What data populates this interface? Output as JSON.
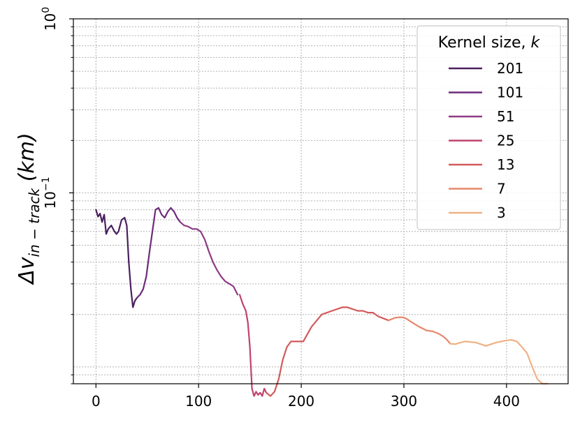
{
  "chart_data": {
    "type": "line",
    "title": "",
    "xlabel": "",
    "ylabel_parts": [
      "Δv",
      "in − track",
      " (km)"
    ],
    "xlim": [
      -22,
      460
    ],
    "ylim": [
      0.008,
      1.0
    ],
    "yscale": "log",
    "grid": true,
    "x_tick_labels": [
      "0",
      "100",
      "200",
      "300",
      "400"
    ],
    "y_tick_labels": [
      {
        "base": "10",
        "exp": "0"
      },
      {
        "base": "10",
        "exp": "−1"
      }
    ],
    "legend": {
      "title": "Kernel size, ",
      "title_var": "k",
      "placement": "upper right"
    },
    "series": [
      {
        "name": "201",
        "color": "#4a1f5e",
        "x": [
          0,
          2,
          4,
          6,
          8,
          10,
          12,
          15,
          18,
          20,
          22,
          25,
          28,
          30,
          32,
          34,
          36,
          38,
          40
        ],
        "y": [
          0.08,
          0.073,
          0.076,
          0.068,
          0.075,
          0.058,
          0.062,
          0.065,
          0.06,
          0.058,
          0.06,
          0.07,
          0.072,
          0.065,
          0.04,
          0.028,
          0.022,
          0.024,
          0.025
        ]
      },
      {
        "name": "101",
        "color": "#6d2b7a",
        "x": [
          40,
          43,
          46,
          49,
          52,
          55,
          58,
          61,
          64,
          67,
          70,
          73,
          76,
          79,
          82
        ],
        "y": [
          0.025,
          0.026,
          0.028,
          0.033,
          0.045,
          0.06,
          0.08,
          0.082,
          0.075,
          0.072,
          0.078,
          0.082,
          0.078,
          0.072,
          0.068
        ]
      },
      {
        "name": "51",
        "color": "#8f3a86",
        "x": [
          82,
          86,
          90,
          94,
          98,
          102,
          106,
          110,
          114,
          118,
          122,
          126,
          130,
          134,
          138
        ],
        "y": [
          0.068,
          0.065,
          0.064,
          0.062,
          0.062,
          0.06,
          0.054,
          0.046,
          0.04,
          0.036,
          0.033,
          0.031,
          0.03,
          0.029,
          0.026
        ]
      },
      {
        "name": "25",
        "color": "#c0436f",
        "x": [
          140,
          143,
          146,
          148,
          150,
          152,
          154,
          156,
          158,
          160,
          162,
          164,
          166
        ],
        "y": [
          0.026,
          0.023,
          0.021,
          0.018,
          0.013,
          0.0075,
          0.0068,
          0.0072,
          0.0069,
          0.0071,
          0.0068,
          0.0075,
          0.0071
        ]
      },
      {
        "name": "13",
        "color": "#d25a5a",
        "x": [
          166,
          170,
          174,
          178,
          182,
          186,
          190,
          196,
          202,
          210,
          220,
          230,
          240,
          245,
          250,
          255,
          260,
          265,
          270,
          275,
          280,
          285
        ],
        "y": [
          0.0071,
          0.0068,
          0.0072,
          0.0085,
          0.011,
          0.013,
          0.014,
          0.014,
          0.014,
          0.017,
          0.02,
          0.021,
          0.022,
          0.022,
          0.0215,
          0.021,
          0.021,
          0.0205,
          0.0205,
          0.0195,
          0.019,
          0.0185
        ]
      },
      {
        "name": "7",
        "color": "#e8876a",
        "x": [
          285,
          292,
          298,
          302,
          308,
          315,
          322,
          328,
          334,
          338,
          342,
          345
        ],
        "y": [
          0.0185,
          0.0192,
          0.0193,
          0.019,
          0.018,
          0.017,
          0.0162,
          0.016,
          0.0155,
          0.015,
          0.0143,
          0.0136
        ]
      },
      {
        "name": "3",
        "color": "#efb184",
        "x": [
          345,
          350,
          355,
          360,
          365,
          370,
          375,
          380,
          385,
          390,
          395,
          400,
          405,
          410,
          415,
          420,
          425,
          430,
          435,
          440
        ],
        "y": [
          0.0136,
          0.0135,
          0.0138,
          0.014,
          0.0139,
          0.0138,
          0.0135,
          0.0132,
          0.0135,
          0.0138,
          0.014,
          0.0142,
          0.0143,
          0.014,
          0.013,
          0.012,
          0.01,
          0.0085,
          0.008,
          0.008
        ]
      }
    ]
  }
}
